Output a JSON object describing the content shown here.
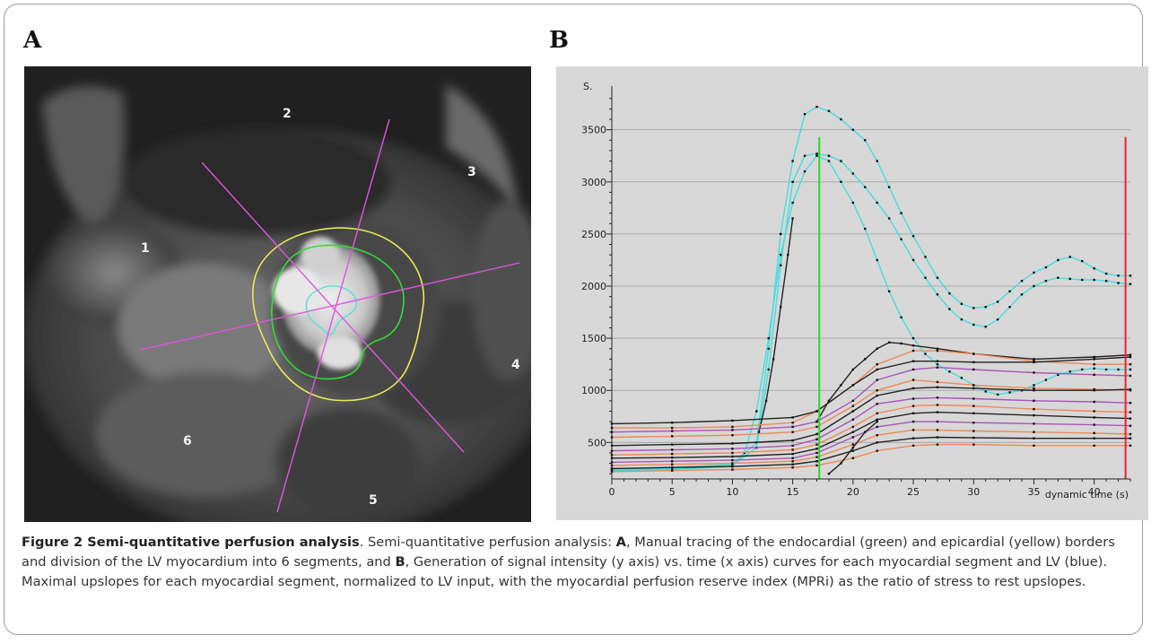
{
  "panel_a": {
    "label": "A",
    "segment_labels": [
      "1",
      "2",
      "3",
      "4",
      "5",
      "6"
    ],
    "colors": {
      "endocardial": "#33dd33",
      "epicardial": "#e8e85a",
      "lv_blood_pool": "#55dddd",
      "segment_lines": "#e055e0"
    }
  },
  "panel_b": {
    "label": "B"
  },
  "chart_data": {
    "type": "line",
    "ylabel": "S.",
    "xlabel": "dynamic time (s)",
    "x_ticks": [
      0,
      5,
      10,
      15,
      20,
      25,
      30,
      35,
      40
    ],
    "y_ticks": [
      500,
      1000,
      1500,
      2000,
      2500,
      3000,
      3500
    ],
    "xlim": [
      0,
      43
    ],
    "ylim": [
      150,
      3850
    ],
    "grid": true,
    "vertical_markers": [
      {
        "x": 17.2,
        "color": "#22dd22"
      },
      {
        "x": 42.6,
        "color": "#ee2222"
      }
    ],
    "series": [
      {
        "color": "#44dddd",
        "x": [
          0,
          5,
          10,
          12,
          13,
          14,
          15,
          16,
          17,
          18,
          19,
          20,
          21,
          22,
          23,
          24,
          25,
          26,
          27,
          28,
          29,
          30,
          31,
          32,
          33,
          34,
          35,
          36,
          37,
          38,
          39,
          40,
          41,
          42,
          43
        ],
        "y": [
          250,
          260,
          290,
          500,
          1400,
          2500,
          3200,
          3650,
          3720,
          3680,
          3600,
          3500,
          3400,
          3200,
          2950,
          2700,
          2480,
          2280,
          2080,
          1930,
          1830,
          1790,
          1800,
          1850,
          1950,
          2050,
          2130,
          2180,
          2250,
          2280,
          2240,
          2170,
          2120,
          2100,
          2100
        ]
      },
      {
        "color": "#44dddd",
        "x": [
          0,
          5,
          10,
          12,
          13,
          14,
          15,
          16,
          17,
          18,
          19,
          20,
          21,
          22,
          23,
          24,
          25,
          26,
          27,
          28,
          29,
          30,
          31,
          32,
          33,
          34,
          35,
          36,
          37,
          38,
          39,
          40,
          41,
          42,
          43
        ],
        "y": [
          240,
          250,
          280,
          450,
          1200,
          2200,
          3000,
          3250,
          3270,
          3250,
          3200,
          3080,
          2950,
          2800,
          2650,
          2450,
          2250,
          2080,
          1920,
          1780,
          1680,
          1630,
          1610,
          1680,
          1800,
          1920,
          2000,
          2050,
          2080,
          2070,
          2060,
          2060,
          2050,
          2030,
          2020
        ]
      },
      {
        "color": "#44dddd",
        "x": [
          0,
          5,
          10,
          11,
          12,
          13,
          14,
          15,
          16,
          17,
          18,
          19,
          20,
          21,
          22,
          23,
          24,
          25,
          26,
          27,
          28,
          29,
          30,
          31,
          32,
          33,
          34,
          35,
          36,
          37,
          38,
          39,
          40,
          41,
          42,
          43
        ],
        "y": [
          230,
          240,
          270,
          400,
          800,
          1500,
          2300,
          2800,
          3100,
          3250,
          3200,
          3000,
          2800,
          2550,
          2250,
          1950,
          1700,
          1500,
          1350,
          1250,
          1180,
          1120,
          1050,
          990,
          960,
          980,
          1000,
          1050,
          1100,
          1150,
          1180,
          1200,
          1210,
          1200,
          1200,
          1200
        ]
      },
      {
        "color": "#222222",
        "x": [
          12.2,
          12.8,
          13.4,
          14,
          14.6,
          15
        ],
        "y": [
          600,
          900,
          1300,
          1800,
          2300,
          2650
        ]
      },
      {
        "color": "#222222",
        "x": [
          17,
          18,
          19,
          20,
          21,
          22,
          23,
          24,
          25,
          27,
          30,
          35,
          40,
          43
        ],
        "y": [
          700,
          900,
          1050,
          1200,
          1300,
          1400,
          1460,
          1450,
          1430,
          1400,
          1350,
          1300,
          1320,
          1340
        ]
      },
      {
        "color": "#ee8855",
        "x": [
          0,
          5,
          10,
          15,
          17,
          20,
          22,
          25,
          27,
          30,
          35,
          40,
          43
        ],
        "y": [
          640,
          640,
          650,
          690,
          800,
          1050,
          1250,
          1380,
          1380,
          1350,
          1280,
          1250,
          1250
        ]
      },
      {
        "color": "#222222",
        "x": [
          0,
          5,
          10,
          15,
          17,
          20,
          22,
          25,
          27,
          30,
          35,
          40,
          43
        ],
        "y": [
          680,
          690,
          710,
          740,
          800,
          1050,
          1200,
          1280,
          1280,
          1270,
          1270,
          1300,
          1320
        ]
      },
      {
        "color": "#aa55bb",
        "x": [
          0,
          5,
          10,
          15,
          17,
          20,
          22,
          25,
          27,
          30,
          35,
          40,
          43
        ],
        "y": [
          600,
          610,
          620,
          650,
          700,
          900,
          1100,
          1200,
          1220,
          1200,
          1170,
          1150,
          1140
        ]
      },
      {
        "color": "#ee8855",
        "x": [
          0,
          5,
          10,
          15,
          17,
          20,
          22,
          25,
          27,
          30,
          35,
          40,
          43
        ],
        "y": [
          550,
          560,
          570,
          600,
          650,
          850,
          1000,
          1100,
          1080,
          1050,
          1020,
          1010,
          1000
        ]
      },
      {
        "color": "#222222",
        "x": [
          0,
          5,
          10,
          15,
          17,
          20,
          22,
          25,
          27,
          30,
          35,
          40,
          43
        ],
        "y": [
          470,
          480,
          490,
          520,
          580,
          800,
          950,
          1020,
          1030,
          1020,
          1000,
          1000,
          1010
        ]
      },
      {
        "color": "#aa55bb",
        "x": [
          0,
          5,
          10,
          15,
          17,
          20,
          22,
          25,
          27,
          30,
          35,
          40,
          43
        ],
        "y": [
          420,
          430,
          440,
          470,
          530,
          720,
          870,
          920,
          930,
          920,
          900,
          890,
          880
        ]
      },
      {
        "color": "#ee8855",
        "x": [
          0,
          5,
          10,
          15,
          17,
          20,
          22,
          25,
          27,
          30,
          35,
          40,
          43
        ],
        "y": [
          380,
          390,
          400,
          430,
          480,
          650,
          780,
          850,
          860,
          850,
          820,
          800,
          790
        ]
      },
      {
        "color": "#222222",
        "x": [
          0,
          5,
          10,
          15,
          17,
          20,
          22,
          25,
          27,
          30,
          35,
          40,
          43
        ],
        "y": [
          350,
          355,
          365,
          390,
          440,
          600,
          720,
          780,
          790,
          780,
          760,
          740,
          730
        ]
      },
      {
        "color": "#aa55bb",
        "x": [
          0,
          5,
          10,
          15,
          17,
          20,
          22,
          25,
          27,
          30,
          35,
          40,
          43
        ],
        "y": [
          310,
          320,
          330,
          350,
          400,
          550,
          650,
          700,
          700,
          690,
          680,
          670,
          660
        ]
      },
      {
        "color": "#ee8855",
        "x": [
          0,
          5,
          10,
          15,
          17,
          20,
          22,
          25,
          27,
          30,
          35,
          40,
          43
        ],
        "y": [
          280,
          290,
          300,
          320,
          360,
          480,
          570,
          620,
          620,
          610,
          600,
          590,
          580
        ]
      },
      {
        "color": "#222222",
        "x": [
          0,
          5,
          10,
          15,
          17,
          20,
          22,
          25,
          27,
          30,
          35,
          40,
          43
        ],
        "y": [
          250,
          260,
          270,
          290,
          320,
          420,
          500,
          540,
          550,
          545,
          540,
          540,
          540
        ]
      },
      {
        "color": "#ee8855",
        "x": [
          0,
          5,
          10,
          15,
          17,
          20,
          22,
          25,
          27,
          30,
          35,
          40,
          43
        ],
        "y": [
          220,
          230,
          240,
          260,
          280,
          350,
          420,
          470,
          480,
          480,
          470,
          470,
          470
        ]
      },
      {
        "color": "#222222",
        "x": [
          18,
          19,
          20,
          21,
          22
        ],
        "y": [
          200,
          300,
          450,
          600,
          700
        ]
      }
    ]
  },
  "caption": {
    "title": "Figure 2 Semi-quantitative perfusion analysis",
    "t1": ". Semi-quantitative perfusion analysis: ",
    "bA": "A",
    "t2": ", Manual tracing of the endocardial (green) and epicardial (yellow) borders and division of the LV myocardium into 6 segments, and ",
    "bB": "B",
    "t3": ", Generation of signal intensity (y axis) vs. time (x axis) curves for each myocardial segment and LV (blue). Maximal upslopes for each myocardial segment, normalized to LV input, with the myocardial perfusion reserve index (MPRi) as the ratio of stress to rest upslopes."
  }
}
